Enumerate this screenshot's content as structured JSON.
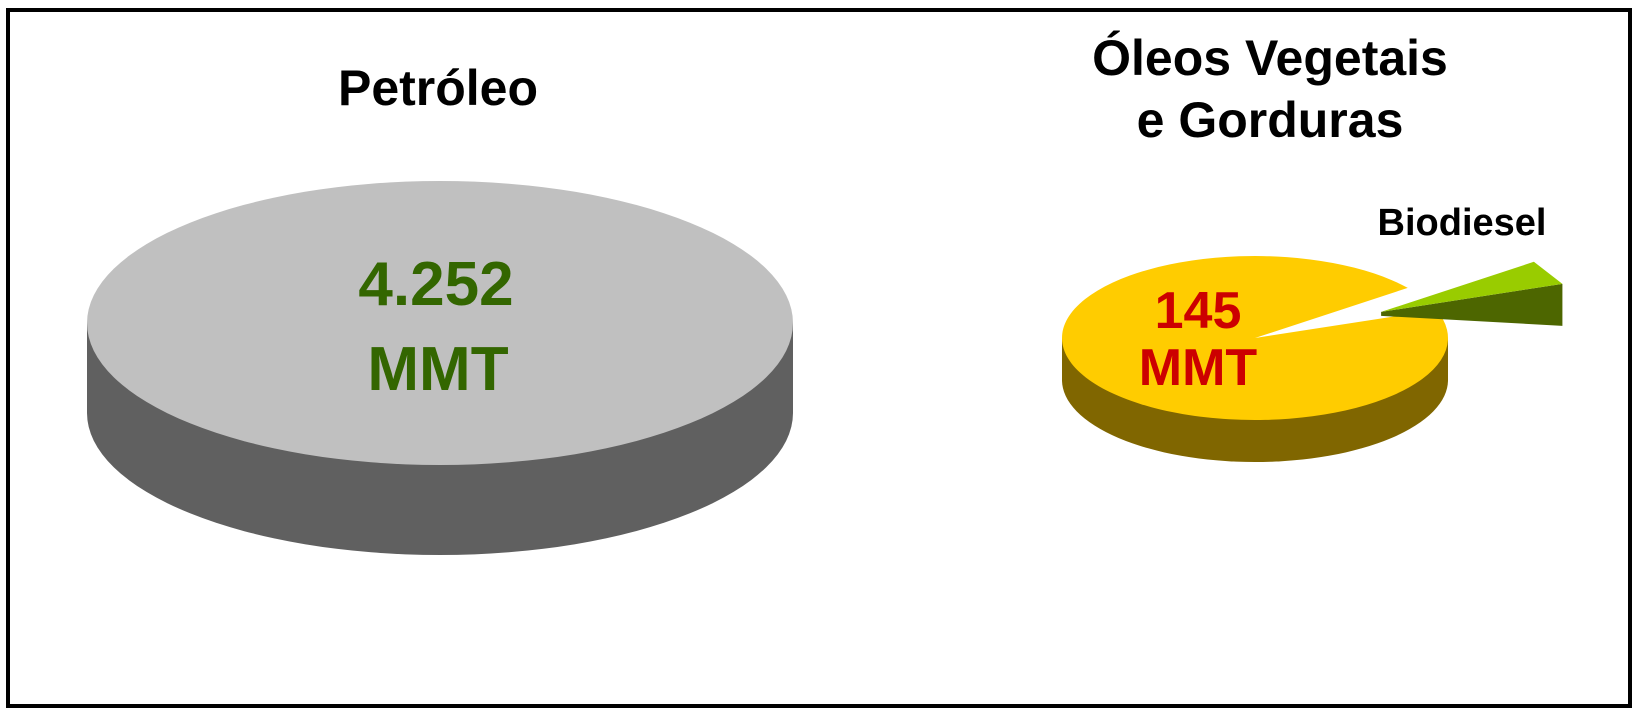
{
  "chart_data": [
    {
      "type": "pie",
      "title": "Petróleo",
      "center_label": [
        "4.252",
        "MMT"
      ],
      "slices": [
        {
          "value": 4252,
          "color_top": "#c0c0c0",
          "color_side": "#606060"
        }
      ]
    },
    {
      "type": "pie",
      "title": [
        "Óleos Vegetais",
        "e Gorduras"
      ],
      "center_label": [
        "145",
        "MMT"
      ],
      "slices": [
        {
          "value": 145,
          "color_top": "#ffcc00",
          "color_side": "#806600"
        },
        {
          "label": "Biodiesel",
          "value": 3.3,
          "exploded": true,
          "color_top": "#99cc00",
          "color_side": "#4d6600"
        }
      ]
    }
  ],
  "colors": {
    "petro_label": "#336600",
    "oleo_label": "#cc0000",
    "text": "#000000"
  }
}
